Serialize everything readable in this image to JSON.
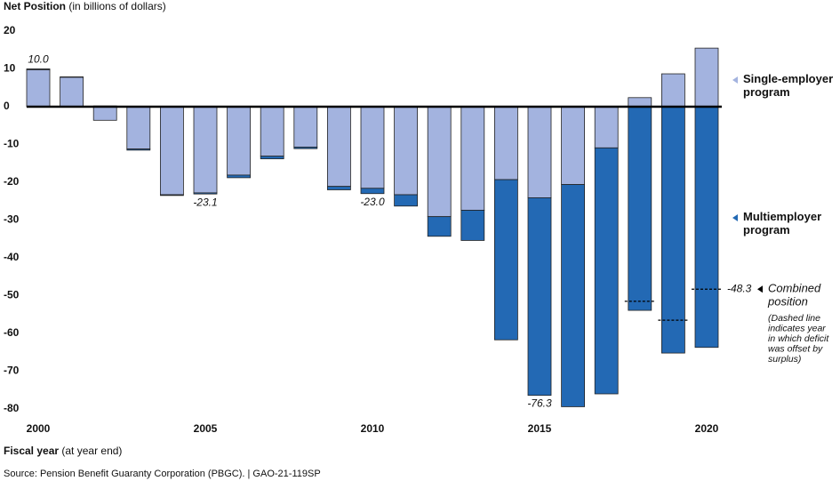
{
  "chart_data": {
    "type": "bar",
    "stacked": true,
    "title": "Net Position",
    "title_unit": "(in billions of dollars)",
    "x_label": "Fiscal year",
    "x_label_unit": "(at year end)",
    "source": "Source: Pension Benefit Guaranty Corporation (PBGC).  |  GAO-21-119SP",
    "categories": [
      "2000",
      null,
      null,
      null,
      null,
      "2005",
      null,
      null,
      null,
      null,
      "2010",
      null,
      null,
      null,
      null,
      "2015",
      null,
      null,
      null,
      null,
      "2020"
    ],
    "series": [
      {
        "name": "Single-employer program",
        "color": "#a3b3df",
        "values": [
          9.8,
          7.8,
          -3.6,
          -11.2,
          -23.3,
          -22.8,
          -18.1,
          -13.1,
          -10.7,
          -21.1,
          -21.6,
          -23.3,
          -29.1,
          -27.4,
          -19.3,
          -24.1,
          -20.6,
          -10.9,
          2.4,
          8.7,
          15.5
        ]
      },
      {
        "name": "Multiemployer program",
        "color": "#2369b4",
        "values": [
          0.2,
          0.1,
          0.2,
          -0.3,
          -0.2,
          -0.3,
          -0.7,
          -0.7,
          -0.4,
          -0.9,
          -1.4,
          -3.0,
          -5.2,
          -8.0,
          -42.4,
          -52.3,
          -58.8,
          -65.1,
          -53.9,
          -65.2,
          -63.7
        ]
      }
    ],
    "totals": {
      "values": [
        10.0,
        null,
        null,
        null,
        null,
        -23.1,
        null,
        null,
        null,
        null,
        -23.0,
        null,
        null,
        null,
        null,
        -76.3,
        null,
        null,
        null,
        null,
        -48.3
      ],
      "value_labels": [
        "10.0",
        null,
        null,
        null,
        null,
        "-23.1",
        null,
        null,
        null,
        null,
        "-23.0",
        null,
        null,
        null,
        null,
        "-76.3",
        null,
        null,
        null,
        null,
        "-48.3"
      ]
    },
    "combined": {
      "name": "Combined position",
      "note": [
        "(Dashed line",
        "indicates year",
        "in which deficit",
        "was offset by",
        "surplus)"
      ],
      "values": [
        null,
        null,
        null,
        null,
        null,
        null,
        null,
        null,
        null,
        null,
        null,
        null,
        null,
        null,
        null,
        null,
        null,
        null,
        -51.5,
        -56.5,
        -48.3
      ]
    },
    "ylim": [
      -80,
      20
    ],
    "yticks": [
      -80,
      -70,
      -60,
      -50,
      -40,
      -30,
      -20,
      -10,
      0,
      10,
      20
    ]
  }
}
